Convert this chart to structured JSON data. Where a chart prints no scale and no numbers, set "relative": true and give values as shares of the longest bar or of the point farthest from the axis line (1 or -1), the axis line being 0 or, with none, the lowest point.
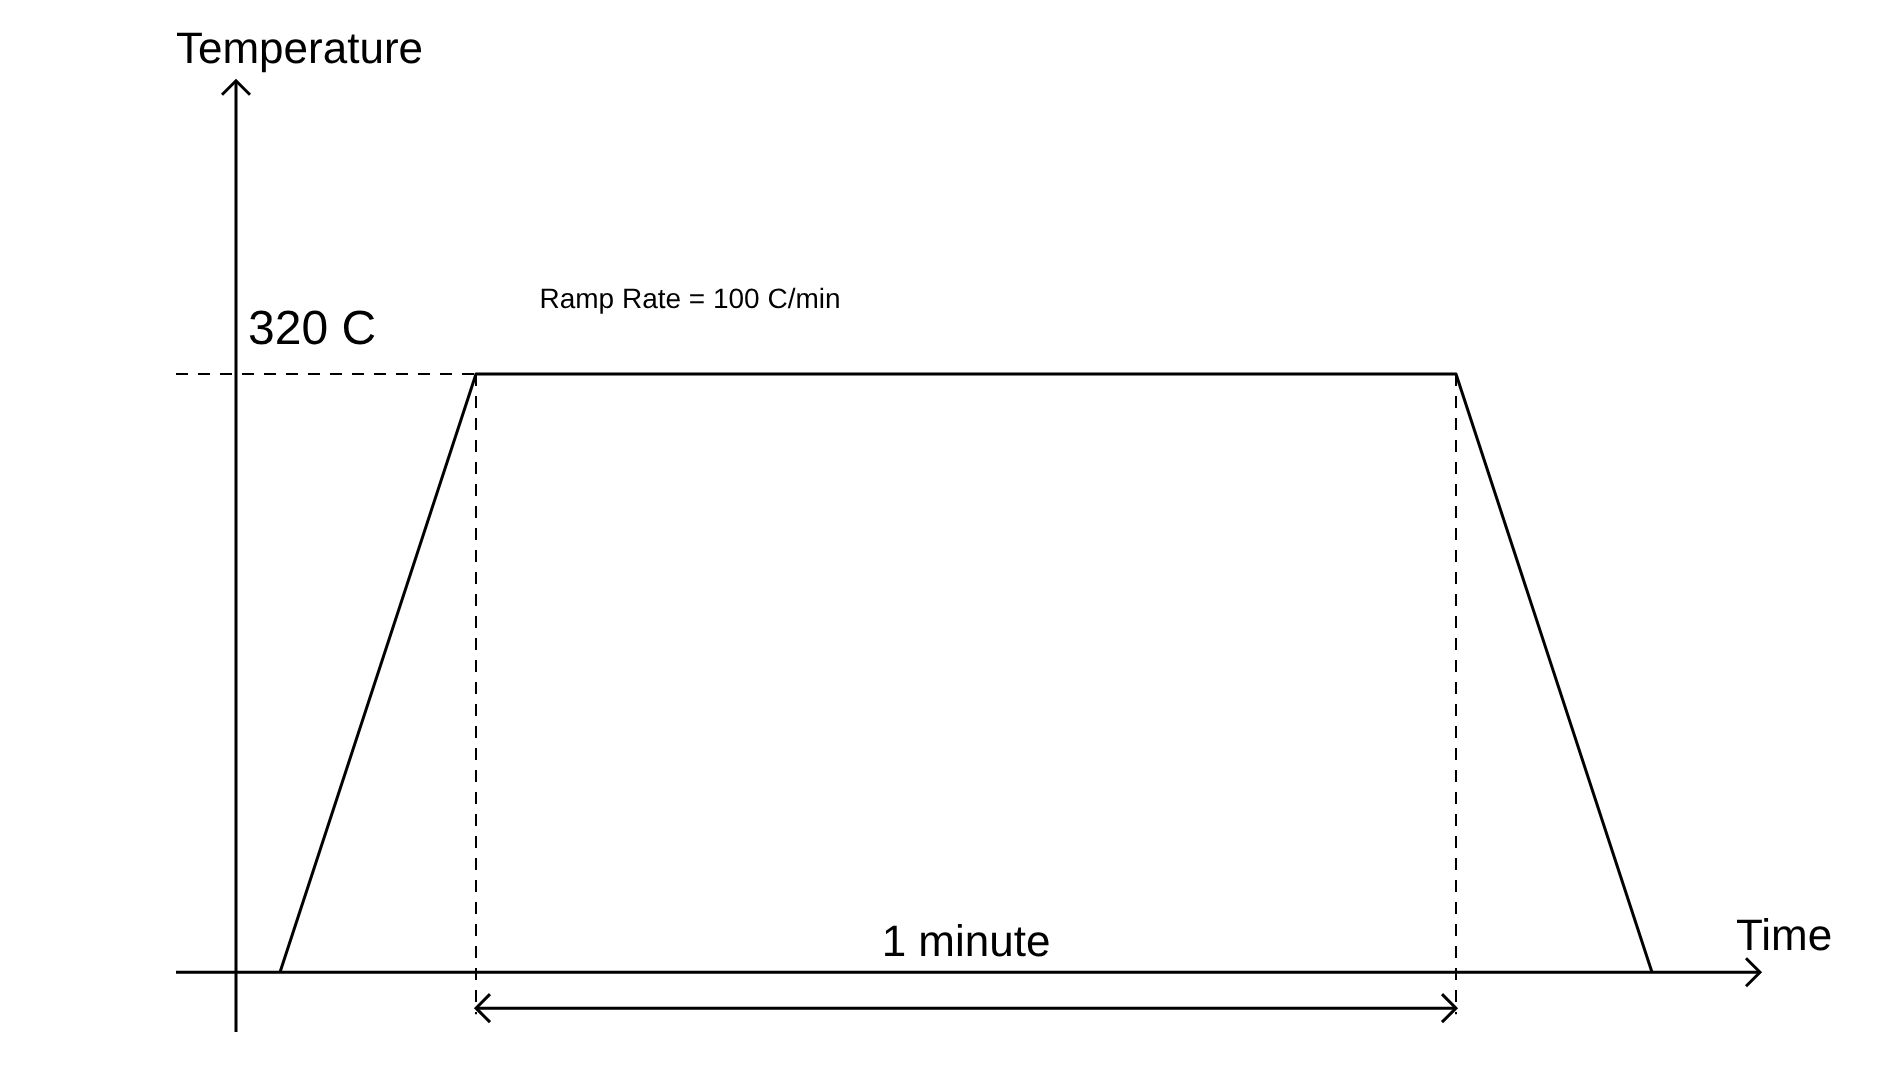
{
  "chart_data": {
    "type": "line",
    "relative": true,
    "xlabel": "Time",
    "categories": [
      null,
      null,
      null,
      null,
      null,
      null,
      null,
      null
    ],
    "series": [
      {
        "color": "#000000",
        "values": [
          0,
          1,
          1,
          1,
          1,
          1,
          1,
          0
        ]
      }
    ],
    "ref_lines": [
      {
        "axis": "y",
        "value": 1,
        "label": "320 C",
        "line_style": "dashed"
      }
    ],
    "annotations": [
      "Temperature",
      "Ramp Rate = 100 C/min",
      "1 minute"
    ],
    "marker": "none",
    "line_style": "solid"
  }
}
